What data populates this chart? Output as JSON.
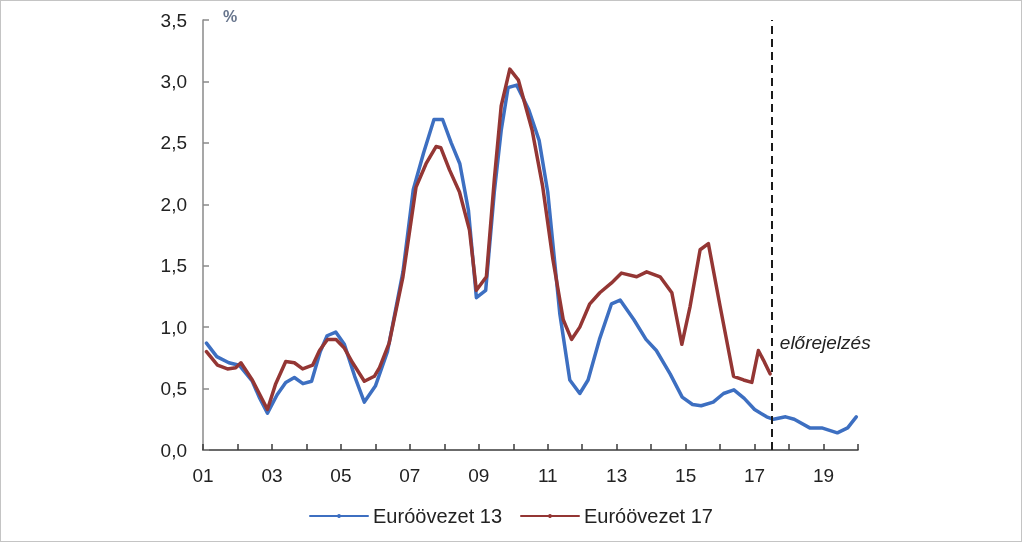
{
  "chart_data": {
    "type": "line",
    "ylabel": "%",
    "xlim": [
      2001,
      2020
    ],
    "xticks": [
      {
        "value": 2001,
        "label": "01"
      },
      {
        "value": 2002,
        "label": null
      },
      {
        "value": 2003,
        "label": "03"
      },
      {
        "value": 2004,
        "label": null
      },
      {
        "value": 2005,
        "label": "05"
      },
      {
        "value": 2006,
        "label": null
      },
      {
        "value": 2007,
        "label": "07"
      },
      {
        "value": 2008,
        "label": null
      },
      {
        "value": 2009,
        "label": "09"
      },
      {
        "value": 2010,
        "label": null
      },
      {
        "value": 2011,
        "label": "11"
      },
      {
        "value": 2012,
        "label": null
      },
      {
        "value": 2013,
        "label": "13"
      },
      {
        "value": 2014,
        "label": null
      },
      {
        "value": 2015,
        "label": "15"
      },
      {
        "value": 2016,
        "label": null
      },
      {
        "value": 2017,
        "label": "17"
      },
      {
        "value": 2018,
        "label": null
      },
      {
        "value": 2019,
        "label": "19"
      },
      {
        "value": 2020,
        "label": null
      }
    ],
    "ylim": [
      0,
      3.5
    ],
    "yticks": [
      {
        "value": 0,
        "label": "0,0"
      },
      {
        "value": 0.5,
        "label": "0,5"
      },
      {
        "value": 1,
        "label": "1,0"
      },
      {
        "value": 1.5,
        "label": "1,5"
      },
      {
        "value": 2,
        "label": "2,0"
      },
      {
        "value": 2.5,
        "label": "2,5"
      },
      {
        "value": 3,
        "label": "3,0"
      },
      {
        "value": 3.5,
        "label": "3,5"
      }
    ],
    "legend": "bottom",
    "ref_lines": [
      {
        "axis": "x",
        "value": 2017.5,
        "label": "előrejelzés",
        "color": "#1a1a1a",
        "line_style": "dashed"
      }
    ],
    "series": [
      {
        "name": "Euróövezet 13",
        "color": "#3d6fc1",
        "x": [
          2001.1,
          2001.4,
          2001.75,
          2002.05,
          2002.43,
          2002.63,
          2002.87,
          2003.15,
          2003.4,
          2003.65,
          2003.9,
          2004.15,
          2004.4,
          2004.6,
          2004.85,
          2005.1,
          2005.4,
          2005.68,
          2006.0,
          2006.35,
          2006.8,
          2007.1,
          2007.4,
          2007.7,
          2007.95,
          2008.2,
          2008.45,
          2008.7,
          2008.93,
          2009.2,
          2009.45,
          2009.65,
          2009.85,
          2010.1,
          2010.45,
          2010.75,
          2011.0,
          2011.35,
          2011.64,
          2011.93,
          2012.17,
          2012.5,
          2012.85,
          2013.1,
          2013.5,
          2013.85,
          2014.15,
          2014.55,
          2014.9,
          2015.2,
          2015.45,
          2015.8,
          2016.1,
          2016.4,
          2016.7,
          2017.0,
          2017.35,
          2017.55,
          2017.9,
          2018.15,
          2018.6,
          2018.95,
          2019.4,
          2019.7,
          2019.95
        ],
        "values": [
          0.87,
          0.76,
          0.71,
          0.69,
          0.56,
          0.43,
          0.3,
          0.45,
          0.55,
          0.59,
          0.54,
          0.56,
          0.8,
          0.93,
          0.96,
          0.86,
          0.6,
          0.39,
          0.52,
          0.8,
          1.45,
          2.12,
          2.42,
          2.69,
          2.69,
          2.5,
          2.33,
          1.95,
          1.24,
          1.3,
          2.1,
          2.6,
          2.95,
          2.97,
          2.77,
          2.52,
          2.1,
          1.11,
          0.57,
          0.46,
          0.57,
          0.9,
          1.19,
          1.22,
          1.06,
          0.9,
          0.81,
          0.62,
          0.43,
          0.37,
          0.36,
          0.39,
          0.46,
          0.49,
          0.42,
          0.33,
          0.27,
          0.25,
          0.27,
          0.25,
          0.18,
          0.18,
          0.14,
          0.18,
          0.27
        ]
      },
      {
        "name": "Euróövezet 17",
        "color": "#943634",
        "x": [
          2001.1,
          2001.42,
          2001.71,
          2001.95,
          2002.1,
          2002.43,
          2002.87,
          2003.11,
          2003.4,
          2003.65,
          2003.89,
          2004.18,
          2004.38,
          2004.61,
          2004.86,
          2005.1,
          2005.34,
          2005.68,
          2005.97,
          2006.12,
          2006.4,
          2006.8,
          2007.18,
          2007.47,
          2007.76,
          2007.9,
          2008.15,
          2008.44,
          2008.73,
          2008.93,
          2009.22,
          2009.45,
          2009.65,
          2009.9,
          2010.15,
          2010.55,
          2010.85,
          2011.15,
          2011.45,
          2011.69,
          2011.93,
          2012.22,
          2012.51,
          2012.85,
          2013.14,
          2013.58,
          2013.87,
          2014.26,
          2014.6,
          2014.89,
          2015.13,
          2015.42,
          2015.66,
          2016.0,
          2016.39,
          2016.68,
          2016.92,
          2017.11,
          2017.26,
          2017.45
        ],
        "values": [
          0.8,
          0.69,
          0.66,
          0.67,
          0.71,
          0.57,
          0.33,
          0.54,
          0.72,
          0.71,
          0.66,
          0.69,
          0.81,
          0.9,
          0.9,
          0.83,
          0.71,
          0.56,
          0.6,
          0.67,
          0.87,
          1.41,
          2.14,
          2.33,
          2.47,
          2.46,
          2.28,
          2.1,
          1.79,
          1.3,
          1.41,
          2.2,
          2.8,
          3.1,
          3.01,
          2.6,
          2.15,
          1.55,
          1.06,
          0.9,
          1.0,
          1.19,
          1.28,
          1.36,
          1.44,
          1.41,
          1.45,
          1.41,
          1.28,
          0.86,
          1.17,
          1.63,
          1.68,
          1.17,
          0.6,
          0.57,
          0.55,
          0.81,
          0.73,
          0.62
        ]
      }
    ]
  }
}
